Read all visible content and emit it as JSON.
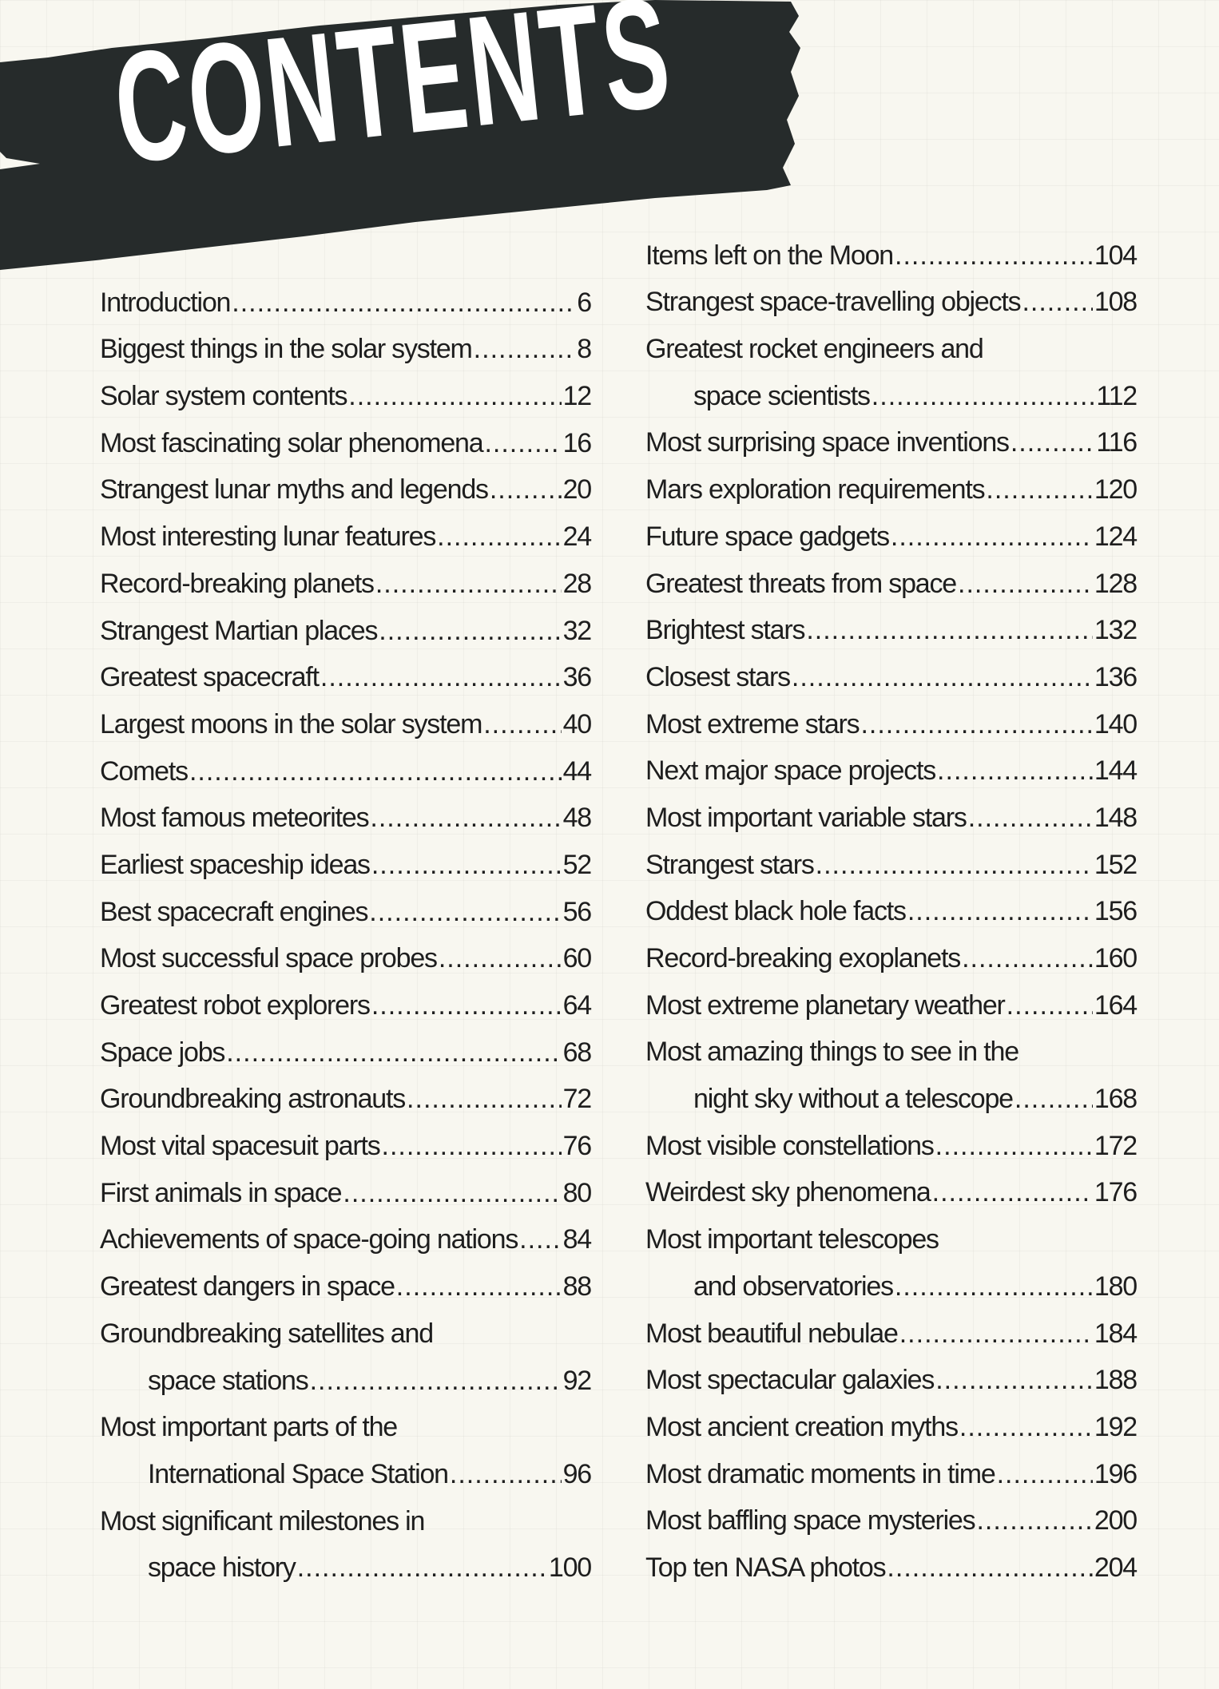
{
  "title": "CONTENTS",
  "colors": {
    "brush": "#262b2b",
    "text": "#1e1e1e",
    "background": "#f8f7f0"
  },
  "left": [
    {
      "title": "Introduction",
      "page": "6"
    },
    {
      "title": "Biggest things in the solar system",
      "page": "8"
    },
    {
      "title": "Solar system contents",
      "page": "12"
    },
    {
      "title": "Most fascinating solar phenomena",
      "page": "16"
    },
    {
      "title": "Strangest lunar myths and legends",
      "page": "20"
    },
    {
      "title": "Most interesting lunar features",
      "page": "24"
    },
    {
      "title": "Record-breaking planets",
      "page": "28"
    },
    {
      "title": "Strangest Martian places",
      "page": "32"
    },
    {
      "title": "Greatest spacecraft",
      "page": "36"
    },
    {
      "title": "Largest moons in the solar system",
      "page": "40"
    },
    {
      "title": "Comets",
      "page": "44"
    },
    {
      "title": "Most famous meteorites",
      "page": "48"
    },
    {
      "title": "Earliest spaceship ideas",
      "page": "52"
    },
    {
      "title": "Best spacecraft engines",
      "page": "56"
    },
    {
      "title": "Most successful space probes",
      "page": "60"
    },
    {
      "title": "Greatest robot explorers",
      "page": "64"
    },
    {
      "title": "Space jobs",
      "page": "68"
    },
    {
      "title": "Groundbreaking astronauts",
      "page": "72"
    },
    {
      "title": "Most vital spacesuit parts",
      "page": "76"
    },
    {
      "title": "First animals in space",
      "page": "80"
    },
    {
      "title": "Achievements of space-going nations",
      "page": "84"
    },
    {
      "title": "Greatest dangers in space",
      "page": "88"
    },
    {
      "title": "Groundbreaking satellites and",
      "cont": "space stations",
      "page": "92"
    },
    {
      "title": "Most important parts of the",
      "cont": "International Space Station",
      "page": "96"
    },
    {
      "title": "Most significant milestones in",
      "cont": "space history",
      "page": "100"
    }
  ],
  "right": [
    {
      "title": "Items left on the Moon",
      "page": "104"
    },
    {
      "title": "Strangest space-travelling objects",
      "page": "108"
    },
    {
      "title": "Greatest rocket engineers and",
      "cont": "space scientists",
      "page": "112"
    },
    {
      "title": "Most surprising space inventions",
      "page": "116"
    },
    {
      "title": "Mars exploration requirements",
      "page": "120"
    },
    {
      "title": "Future space gadgets",
      "page": "124"
    },
    {
      "title": "Greatest threats from space",
      "page": "128"
    },
    {
      "title": "Brightest stars",
      "page": "132"
    },
    {
      "title": "Closest stars",
      "page": "136"
    },
    {
      "title": "Most extreme stars",
      "page": "140"
    },
    {
      "title": "Next major space projects",
      "page": "144"
    },
    {
      "title": "Most important variable stars",
      "page": "148"
    },
    {
      "title": "Strangest stars",
      "page": "152"
    },
    {
      "title": "Oddest black hole facts",
      "page": "156"
    },
    {
      "title": "Record-breaking exoplanets",
      "page": "160"
    },
    {
      "title": "Most extreme planetary weather",
      "page": "164"
    },
    {
      "title": "Most amazing things to see in the",
      "cont": "night sky without a telescope",
      "page": "168"
    },
    {
      "title": "Most visible constellations",
      "page": "172"
    },
    {
      "title": "Weirdest sky phenomena",
      "page": "176"
    },
    {
      "title": "Most important telescopes",
      "cont": "and observatories",
      "page": "180"
    },
    {
      "title": "Most beautiful nebulae",
      "page": "184"
    },
    {
      "title": "Most spectacular galaxies",
      "page": "188"
    },
    {
      "title": "Most ancient creation myths",
      "page": "192"
    },
    {
      "title": "Most dramatic moments in time",
      "page": "196"
    },
    {
      "title": "Most baffling space mysteries",
      "page": "200"
    },
    {
      "title": "Top ten NASA photos",
      "page": "204"
    }
  ]
}
